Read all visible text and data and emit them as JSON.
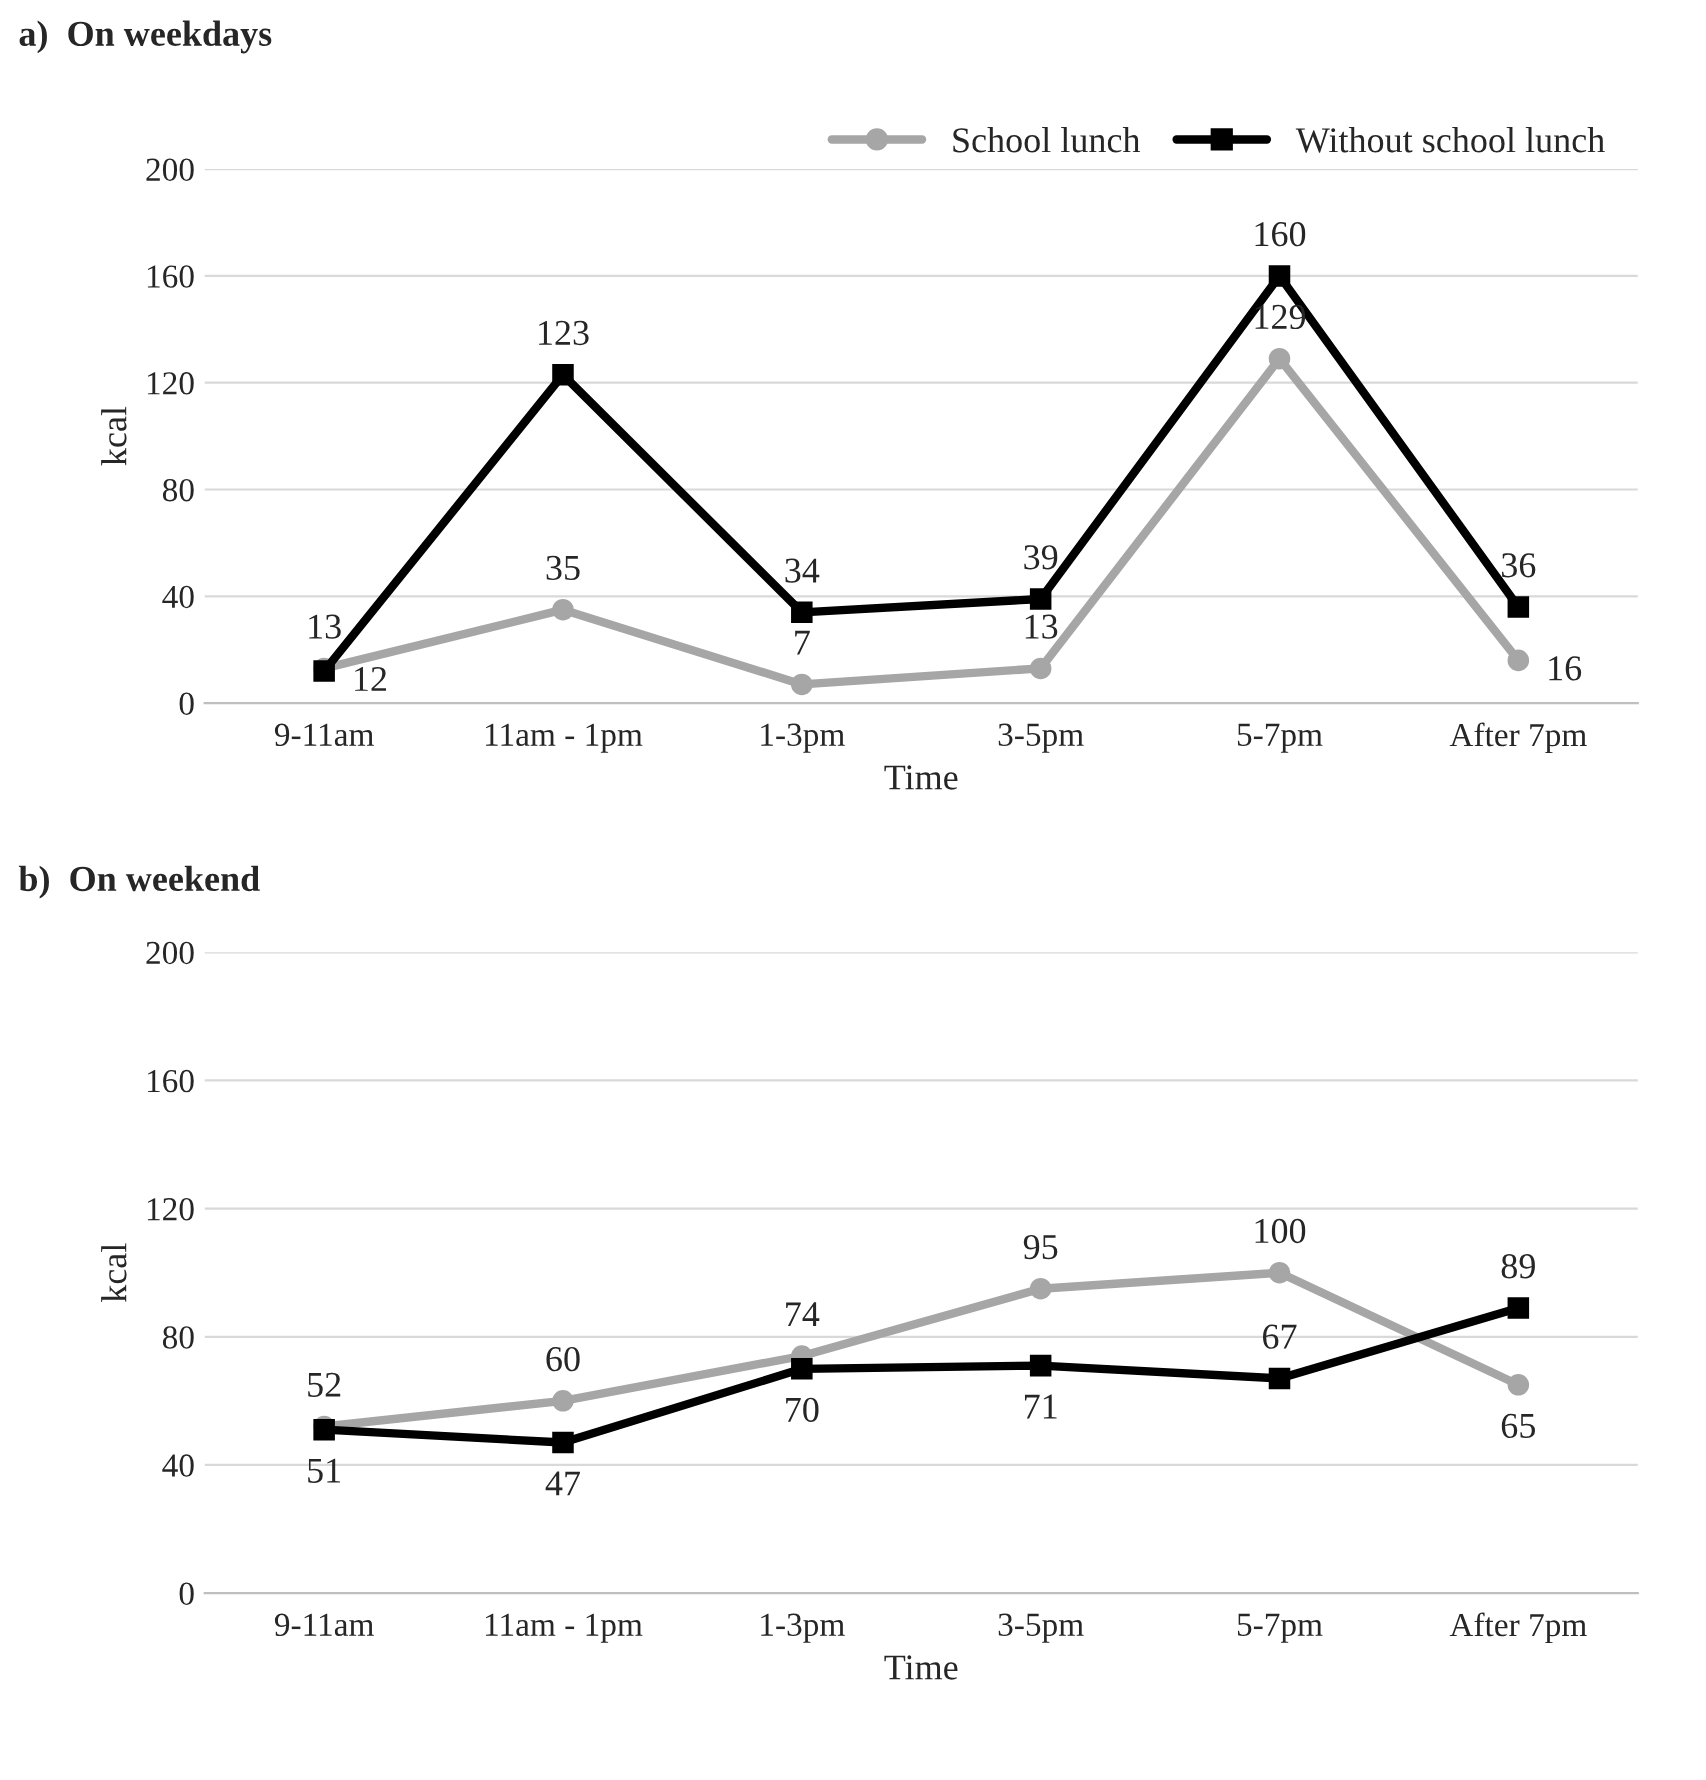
{
  "chart_data": [
    {
      "type": "line",
      "title": "a)  On weekdays",
      "xlabel": "Time",
      "ylabel": "kcal",
      "categories": [
        "9-11am",
        "11am - 1pm",
        "1-3pm",
        "3-5pm",
        "5-7pm",
        "After 7pm"
      ],
      "series": [
        {
          "name": "School lunch",
          "color": "#a6a6a6",
          "marker": "circle",
          "values": [
            13,
            35,
            7,
            13,
            129,
            16
          ]
        },
        {
          "name": "Without school lunch",
          "color": "#000000",
          "marker": "square",
          "values": [
            12,
            123,
            34,
            39,
            160,
            36
          ]
        }
      ],
      "ylim": [
        0,
        200
      ],
      "yticks": [
        0,
        40,
        80,
        120,
        160,
        200
      ],
      "grid": "y",
      "legend": "top right",
      "data_labels": true
    },
    {
      "type": "line",
      "title": "b)  On weekend",
      "xlabel": "Time",
      "ylabel": "kcal",
      "categories": [
        "9-11am",
        "11am - 1pm",
        "1-3pm",
        "3-5pm",
        "5-7pm",
        "After 7pm"
      ],
      "series": [
        {
          "color": "#a6a6a6",
          "marker": "circle",
          "values": [
            52,
            60,
            74,
            95,
            100,
            65
          ]
        },
        {
          "color": "#000000",
          "marker": "square",
          "values": [
            51,
            47,
            70,
            71,
            67,
            89
          ]
        }
      ],
      "ylim": [
        0,
        200
      ],
      "yticks": [
        0,
        40,
        80,
        120,
        160,
        200
      ],
      "grid": "y",
      "data_labels": true
    }
  ]
}
